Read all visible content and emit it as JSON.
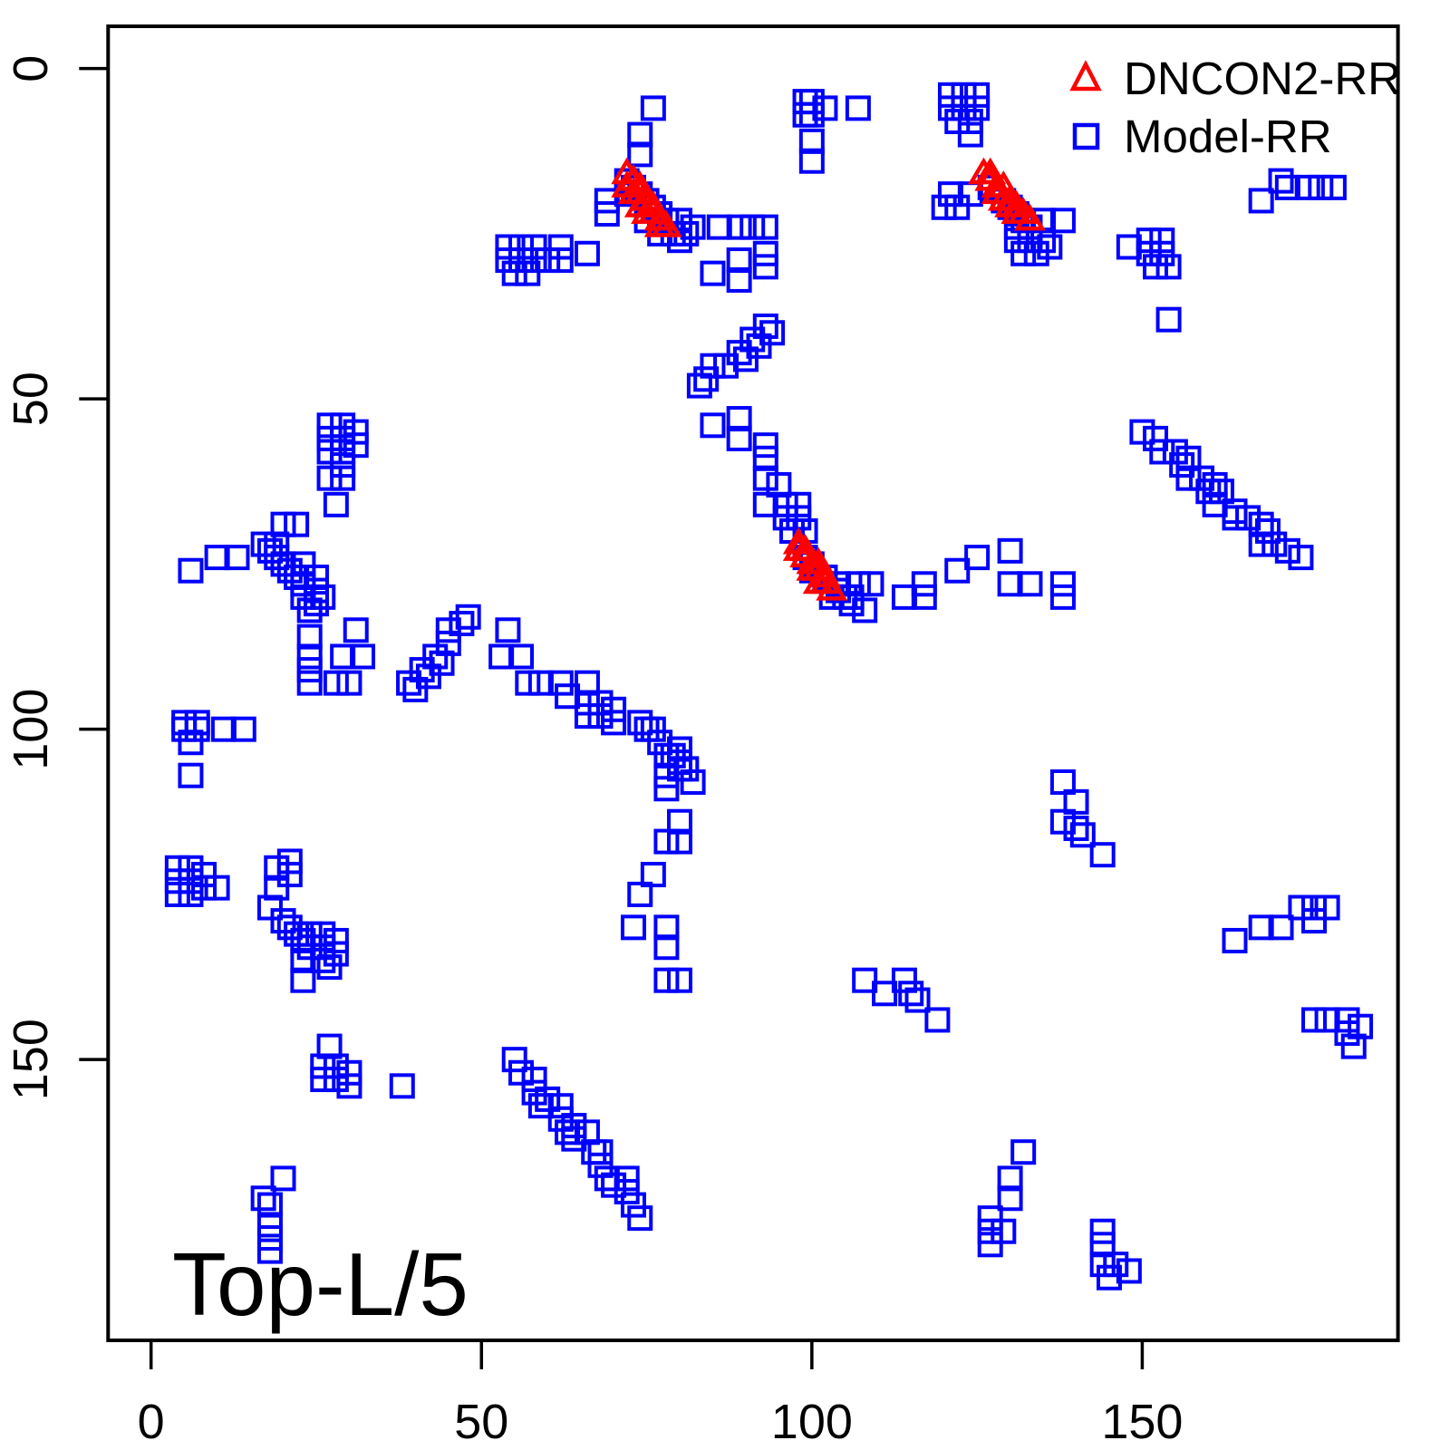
{
  "chart_data": {
    "type": "scatter",
    "title": "",
    "xlabel": "",
    "ylabel": "",
    "panel_label": "Top-L/5",
    "axes": {
      "x_ticks": [
        0,
        50,
        100,
        150
      ],
      "y_ticks": [
        0,
        50,
        100,
        150
      ],
      "xlim": [
        -6.5,
        188.7
      ],
      "ylim": [
        -6.4,
        192.5
      ],
      "y_inverted": true,
      "grid": false
    },
    "colors": {
      "dncon2": "#FF0000",
      "model": "#0000FF",
      "axis": "#000000"
    },
    "legend": {
      "position": "top-right",
      "entries": [
        {
          "label": "DNCON2-RR",
          "marker": "triangle-open",
          "color": "#FF0000"
        },
        {
          "label": "Model-RR",
          "marker": "square-open",
          "color": "#0000FF"
        }
      ]
    },
    "series": [
      {
        "name": "Model-RR",
        "marker": "square-open",
        "color": "#0000FF",
        "symmetric_mirror": true,
        "points": [
          [
            76,
            6
          ],
          [
            74,
            10
          ],
          [
            74,
            13
          ],
          [
            69,
            20
          ],
          [
            69,
            22
          ],
          [
            72,
            17
          ],
          [
            72,
            19
          ],
          [
            73,
            18
          ],
          [
            74,
            19
          ],
          [
            75,
            20
          ],
          [
            76,
            21
          ],
          [
            77,
            22
          ],
          [
            75,
            23
          ],
          [
            78,
            23
          ],
          [
            80,
            23
          ],
          [
            82,
            24
          ],
          [
            79,
            25
          ],
          [
            81,
            25
          ],
          [
            80,
            26
          ],
          [
            77,
            25
          ],
          [
            86,
            24
          ],
          [
            89,
            24
          ],
          [
            91,
            24
          ],
          [
            93,
            24
          ],
          [
            85,
            31
          ],
          [
            89,
            29
          ],
          [
            89,
            32
          ],
          [
            93,
            28
          ],
          [
            93,
            30
          ],
          [
            54,
            27
          ],
          [
            56,
            27
          ],
          [
            58,
            27
          ],
          [
            54,
            29
          ],
          [
            56,
            29
          ],
          [
            58,
            29
          ],
          [
            55,
            31
          ],
          [
            57,
            31
          ],
          [
            60,
            29
          ],
          [
            62,
            29
          ],
          [
            62,
            27
          ],
          [
            66,
            28
          ],
          [
            93,
            39
          ],
          [
            94,
            40
          ],
          [
            91,
            41
          ],
          [
            92,
            42
          ],
          [
            89,
            43
          ],
          [
            90,
            44
          ],
          [
            87,
            45
          ],
          [
            85,
            45
          ],
          [
            84,
            47
          ],
          [
            83,
            48
          ],
          [
            85,
            54
          ],
          [
            89,
            53
          ],
          [
            89,
            56
          ],
          [
            93,
            57
          ],
          [
            93,
            59
          ],
          [
            93,
            62
          ],
          [
            95,
            63
          ],
          [
            93,
            66
          ],
          [
            96,
            66
          ],
          [
            98,
            66
          ],
          [
            96,
            68
          ],
          [
            98,
            68
          ],
          [
            97,
            70
          ],
          [
            99,
            70
          ],
          [
            99,
            74
          ],
          [
            100,
            75
          ],
          [
            100,
            76
          ],
          [
            102,
            77
          ],
          [
            104,
            78
          ],
          [
            104,
            79
          ],
          [
            106,
            80
          ],
          [
            106,
            81
          ],
          [
            108,
            82
          ],
          [
            107,
            78
          ],
          [
            109,
            78
          ],
          [
            103,
            80
          ],
          [
            105,
            80
          ],
          [
            114,
            80
          ],
          [
            117,
            80
          ],
          [
            117,
            78
          ],
          [
            121,
            19
          ],
          [
            124,
            19
          ],
          [
            120,
            21
          ],
          [
            122,
            21
          ],
          [
            127,
            18
          ],
          [
            129,
            20
          ],
          [
            130,
            21
          ],
          [
            131,
            22
          ],
          [
            132,
            23
          ],
          [
            131,
            24
          ],
          [
            133,
            24
          ],
          [
            131,
            26
          ],
          [
            133,
            26
          ],
          [
            135,
            26
          ],
          [
            132,
            28
          ],
          [
            134,
            28
          ],
          [
            136,
            27
          ],
          [
            135,
            23
          ],
          [
            138,
            23
          ],
          [
            148,
            27
          ],
          [
            151,
            26
          ],
          [
            153,
            26
          ],
          [
            151,
            28
          ],
          [
            153,
            28
          ],
          [
            152,
            30
          ],
          [
            154,
            30
          ],
          [
            154,
            38
          ],
          [
            168,
            20
          ],
          [
            171,
            17
          ],
          [
            172,
            18
          ],
          [
            175,
            18
          ],
          [
            177,
            18
          ],
          [
            179,
            18
          ],
          [
            121,
            4
          ],
          [
            123,
            4
          ],
          [
            125,
            4
          ],
          [
            121,
            6
          ],
          [
            123,
            6
          ],
          [
            125,
            6
          ],
          [
            122,
            8
          ],
          [
            124,
            8
          ],
          [
            124,
            10
          ],
          [
            99,
            5
          ],
          [
            100,
            5
          ],
          [
            99,
            7
          ],
          [
            100,
            7
          ],
          [
            102,
            6
          ],
          [
            107,
            6
          ],
          [
            100,
            11
          ],
          [
            100,
            14
          ],
          [
            150,
            55
          ],
          [
            152,
            56
          ],
          [
            153,
            58
          ],
          [
            155,
            58
          ],
          [
            157,
            59
          ],
          [
            156,
            60
          ],
          [
            157,
            62
          ],
          [
            159,
            62
          ],
          [
            161,
            63
          ],
          [
            160,
            64
          ],
          [
            162,
            64
          ],
          [
            161,
            66
          ],
          [
            164,
            67
          ],
          [
            164,
            68
          ],
          [
            166,
            68
          ],
          [
            168,
            69
          ],
          [
            169,
            70
          ],
          [
            168,
            72
          ],
          [
            170,
            72
          ],
          [
            172,
            73
          ],
          [
            174,
            74
          ],
          [
            122,
            76
          ],
          [
            125,
            74
          ],
          [
            130,
            73
          ],
          [
            130,
            78
          ],
          [
            133,
            78
          ],
          [
            138,
            78
          ],
          [
            138,
            80
          ],
          [
            138,
            108
          ],
          [
            140,
            111
          ],
          [
            138,
            114
          ],
          [
            140,
            115
          ],
          [
            141,
            116
          ],
          [
            144,
            119
          ],
          [
            164,
            132
          ],
          [
            168,
            130
          ],
          [
            171,
            130
          ],
          [
            174,
            127
          ],
          [
            176,
            127
          ],
          [
            178,
            127
          ],
          [
            176,
            129
          ],
          [
            176,
            144
          ],
          [
            178,
            144
          ],
          [
            181,
            144
          ],
          [
            181,
            146
          ],
          [
            183,
            145
          ],
          [
            182,
            148
          ]
        ]
      },
      {
        "name": "DNCON2-RR",
        "marker": "triangle-open",
        "color": "#FF0000",
        "symmetric_mirror": false,
        "points": [
          [
            72,
            16
          ],
          [
            73,
            17
          ],
          [
            72,
            18
          ],
          [
            74,
            18
          ],
          [
            73,
            19
          ],
          [
            74,
            19
          ],
          [
            75,
            20
          ],
          [
            74,
            21
          ],
          [
            76,
            21
          ],
          [
            75,
            22
          ],
          [
            76,
            22
          ],
          [
            77,
            23
          ],
          [
            77,
            24
          ],
          [
            78,
            24
          ],
          [
            126,
            16
          ],
          [
            127,
            16
          ],
          [
            127,
            17
          ],
          [
            128,
            18
          ],
          [
            129,
            18
          ],
          [
            128,
            19
          ],
          [
            129,
            20
          ],
          [
            130,
            20
          ],
          [
            130,
            21
          ],
          [
            131,
            21
          ],
          [
            131,
            22
          ],
          [
            132,
            22
          ],
          [
            133,
            23
          ],
          [
            98,
            72
          ],
          [
            98,
            73
          ],
          [
            99,
            73
          ],
          [
            99,
            74
          ],
          [
            100,
            75
          ],
          [
            101,
            75
          ],
          [
            100,
            76
          ],
          [
            101,
            76
          ],
          [
            102,
            77
          ],
          [
            101,
            78
          ],
          [
            102,
            78
          ],
          [
            103,
            79
          ]
        ]
      }
    ]
  }
}
